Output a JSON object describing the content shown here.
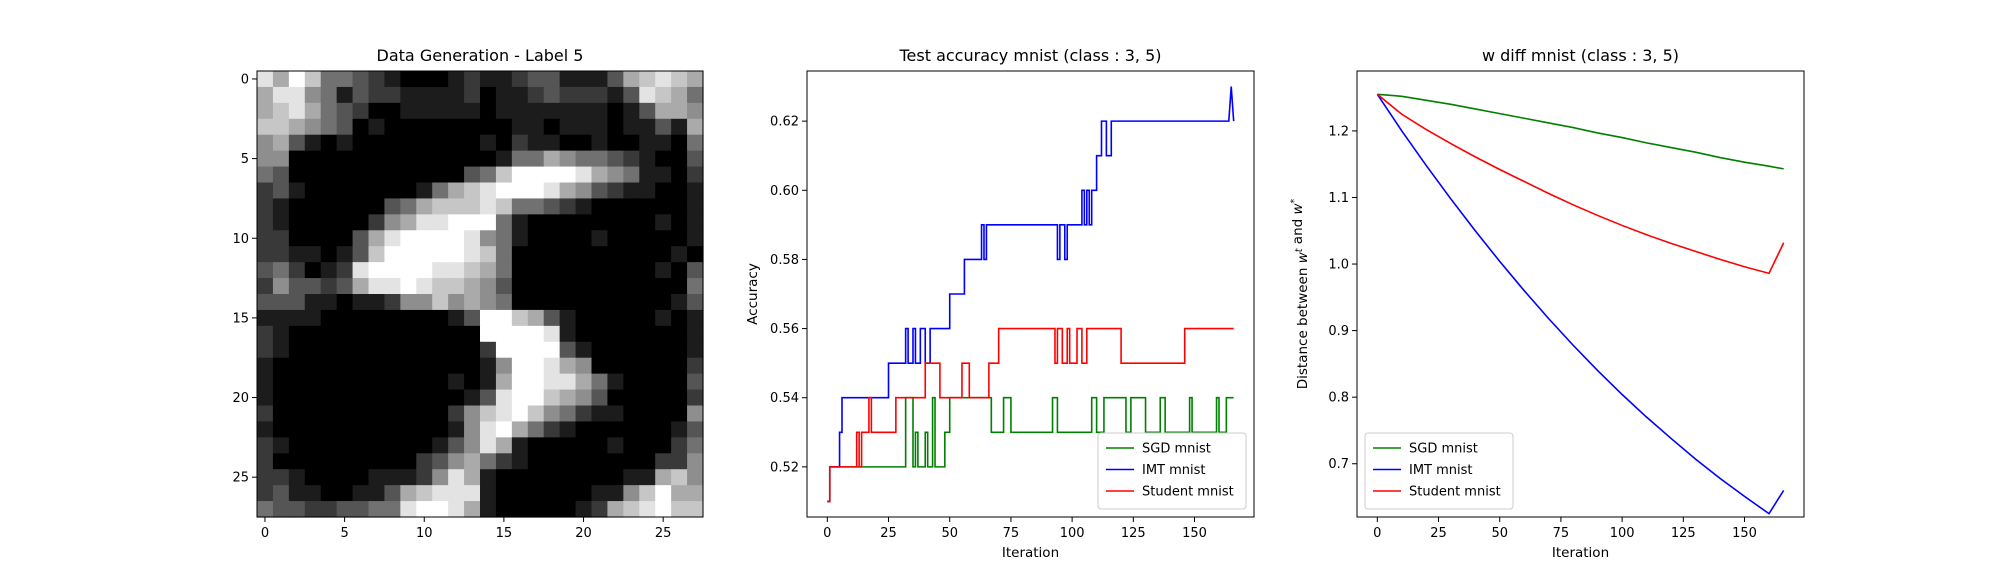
{
  "chart_data": [
    {
      "type": "heatmap",
      "title": "Data Generation - Label 5",
      "xlim": [
        -0.5,
        27.5
      ],
      "ylim": [
        27.5,
        -0.5
      ],
      "xticks": [
        0,
        5,
        10,
        15,
        20,
        25
      ],
      "yticks": [
        0,
        5,
        10,
        15,
        20,
        25
      ],
      "colormap": "gray",
      "image_rows": [
        "8697443210001211233111367876",
        "6885413221111201123222138764",
        "6786432001111101111111013665",
        "7765430100000000110111011316",
        "5631010000000010211001001104",
        "5500000000000001446544321003",
        "4300000000000347999986541102",
        "2310000000146789998653211001",
        "2100000034677787443210000001",
        "2100000256889994100000000101",
        "2200003689999854100001000001",
        "2211013799999874000000000010",
        "3420128999988764000000000103",
        "2533236889877653000000000004",
        "3331101125575654000000000013",
        "1111000000001399763100000101",
        "2100000000000099998100000001",
        "2100000000000029999310000001",
        "1000000000000015998650000002",
        "1000000000001016998864100003",
        "1000000000000138997653000002",
        "2000000000002578975421100005",
        "1000000000001589642100000013",
        "2100000000013586100000100024",
        "2000000000235642100000000225",
        "2210000111258610000000011675",
        "2311001136788810000001157966",
        "4332233448998610000012678977"
      ]
    },
    {
      "type": "line",
      "title": "Test accuracy mnist (class : 3, 5)",
      "xlabel": "Iteration",
      "ylabel": "Accuracy",
      "xlim": [
        -8.3,
        174.3
      ],
      "ylim": [
        0.5055,
        0.6345
      ],
      "xticks": [
        0,
        25,
        50,
        75,
        100,
        125,
        150
      ],
      "yticks": [
        0.52,
        0.54,
        0.56,
        0.58,
        0.6,
        0.62
      ],
      "ytick_decimals": 2,
      "grid": false,
      "legend": "lower-right",
      "series": [
        {
          "name": "SGD mnist",
          "color": "#008000",
          "points": [
            [
              0,
              0.51
            ],
            [
              1,
              0.51
            ],
            [
              1,
              0.52
            ],
            [
              32,
              0.52
            ],
            [
              32,
              0.54
            ],
            [
              35,
              0.54
            ],
            [
              35,
              0.52
            ],
            [
              36,
              0.52
            ],
            [
              36,
              0.53
            ],
            [
              37,
              0.53
            ],
            [
              37,
              0.52
            ],
            [
              40,
              0.52
            ],
            [
              40,
              0.53
            ],
            [
              41,
              0.53
            ],
            [
              41,
              0.52
            ],
            [
              43,
              0.52
            ],
            [
              43,
              0.54
            ],
            [
              44,
              0.54
            ],
            [
              44,
              0.52
            ],
            [
              48,
              0.52
            ],
            [
              48,
              0.53
            ],
            [
              50,
              0.53
            ],
            [
              50,
              0.54
            ],
            [
              67,
              0.54
            ],
            [
              67,
              0.53
            ],
            [
              72,
              0.53
            ],
            [
              72,
              0.54
            ],
            [
              75,
              0.54
            ],
            [
              75,
              0.53
            ],
            [
              92,
              0.53
            ],
            [
              92,
              0.54
            ],
            [
              94,
              0.54
            ],
            [
              94,
              0.53
            ],
            [
              108,
              0.53
            ],
            [
              108,
              0.54
            ],
            [
              110,
              0.54
            ],
            [
              110,
              0.53
            ],
            [
              113,
              0.53
            ],
            [
              113,
              0.54
            ],
            [
              122,
              0.54
            ],
            [
              122,
              0.53
            ],
            [
              124,
              0.53
            ],
            [
              124,
              0.54
            ],
            [
              130,
              0.54
            ],
            [
              130,
              0.53
            ],
            [
              136,
              0.53
            ],
            [
              136,
              0.54
            ],
            [
              138,
              0.54
            ],
            [
              138,
              0.53
            ],
            [
              148,
              0.53
            ],
            [
              148,
              0.54
            ],
            [
              149,
              0.54
            ],
            [
              149,
              0.53
            ],
            [
              159,
              0.53
            ],
            [
              159,
              0.54
            ],
            [
              160,
              0.54
            ],
            [
              160,
              0.53
            ],
            [
              163,
              0.53
            ],
            [
              163,
              0.54
            ],
            [
              166,
              0.54
            ]
          ]
        },
        {
          "name": "IMT mnist",
          "color": "#0000ff",
          "points": [
            [
              0,
              0.51
            ],
            [
              1,
              0.51
            ],
            [
              1,
              0.52
            ],
            [
              5,
              0.52
            ],
            [
              5,
              0.53
            ],
            [
              6,
              0.53
            ],
            [
              6,
              0.54
            ],
            [
              25,
              0.54
            ],
            [
              25,
              0.55
            ],
            [
              32,
              0.55
            ],
            [
              32,
              0.56
            ],
            [
              33,
              0.56
            ],
            [
              33,
              0.55
            ],
            [
              35,
              0.55
            ],
            [
              35,
              0.56
            ],
            [
              36,
              0.56
            ],
            [
              36,
              0.55
            ],
            [
              38,
              0.55
            ],
            [
              38,
              0.56
            ],
            [
              40,
              0.56
            ],
            [
              40,
              0.55
            ],
            [
              42,
              0.55
            ],
            [
              42,
              0.56
            ],
            [
              50,
              0.56
            ],
            [
              50,
              0.57
            ],
            [
              56,
              0.57
            ],
            [
              56,
              0.58
            ],
            [
              63,
              0.58
            ],
            [
              63,
              0.59
            ],
            [
              64,
              0.59
            ],
            [
              64,
              0.58
            ],
            [
              65,
              0.58
            ],
            [
              65,
              0.59
            ],
            [
              94,
              0.59
            ],
            [
              94,
              0.58
            ],
            [
              95,
              0.58
            ],
            [
              95,
              0.59
            ],
            [
              97,
              0.59
            ],
            [
              97,
              0.58
            ],
            [
              98,
              0.58
            ],
            [
              98,
              0.59
            ],
            [
              104,
              0.59
            ],
            [
              104,
              0.6
            ],
            [
              105,
              0.6
            ],
            [
              105,
              0.59
            ],
            [
              106,
              0.59
            ],
            [
              106,
              0.6
            ],
            [
              107,
              0.6
            ],
            [
              107,
              0.59
            ],
            [
              108,
              0.59
            ],
            [
              108,
              0.6
            ],
            [
              110,
              0.6
            ],
            [
              110,
              0.61
            ],
            [
              112,
              0.61
            ],
            [
              112,
              0.62
            ],
            [
              114,
              0.62
            ],
            [
              114,
              0.61
            ],
            [
              116,
              0.61
            ],
            [
              116,
              0.62
            ],
            [
              164,
              0.62
            ],
            [
              165,
              0.63
            ],
            [
              166,
              0.62
            ]
          ]
        },
        {
          "name": "Student mnist",
          "color": "#ff0000",
          "points": [
            [
              0,
              0.51
            ],
            [
              1,
              0.51
            ],
            [
              1,
              0.52
            ],
            [
              12,
              0.52
            ],
            [
              12,
              0.53
            ],
            [
              13,
              0.53
            ],
            [
              13,
              0.52
            ],
            [
              14,
              0.52
            ],
            [
              14,
              0.53
            ],
            [
              17,
              0.53
            ],
            [
              17,
              0.54
            ],
            [
              18,
              0.54
            ],
            [
              18,
              0.53
            ],
            [
              28,
              0.53
            ],
            [
              28,
              0.54
            ],
            [
              40,
              0.54
            ],
            [
              40,
              0.55
            ],
            [
              46,
              0.55
            ],
            [
              46,
              0.54
            ],
            [
              55,
              0.54
            ],
            [
              55,
              0.55
            ],
            [
              58,
              0.55
            ],
            [
              58,
              0.54
            ],
            [
              66,
              0.54
            ],
            [
              66,
              0.55
            ],
            [
              70,
              0.55
            ],
            [
              70,
              0.56
            ],
            [
              93,
              0.56
            ],
            [
              93,
              0.55
            ],
            [
              94,
              0.55
            ],
            [
              94,
              0.56
            ],
            [
              96,
              0.56
            ],
            [
              96,
              0.55
            ],
            [
              98,
              0.55
            ],
            [
              98,
              0.56
            ],
            [
              99,
              0.56
            ],
            [
              99,
              0.55
            ],
            [
              102,
              0.55
            ],
            [
              102,
              0.56
            ],
            [
              104,
              0.56
            ],
            [
              104,
              0.55
            ],
            [
              106,
              0.55
            ],
            [
              106,
              0.56
            ],
            [
              120,
              0.56
            ],
            [
              120,
              0.55
            ],
            [
              146,
              0.55
            ],
            [
              146,
              0.56
            ],
            [
              166,
              0.56
            ]
          ]
        }
      ]
    },
    {
      "type": "line",
      "title": "w diff mnist (class : 3, 5)",
      "xlabel": "Iteration",
      "ylabel": "Distance between $w^t$ and $w^*$",
      "xlim": [
        -8.3,
        174.3
      ],
      "ylim": [
        0.62,
        1.29
      ],
      "xticks": [
        0,
        25,
        50,
        75,
        100,
        125,
        150
      ],
      "yticks": [
        0.7,
        0.8,
        0.9,
        1.0,
        1.1,
        1.2
      ],
      "ytick_decimals": 1,
      "grid": false,
      "legend": "lower-left",
      "series": [
        {
          "name": "SGD mnist",
          "color": "#008000",
          "points": [
            [
              0,
              1.255
            ],
            [
              10,
              1.252
            ],
            [
              20,
              1.246
            ],
            [
              30,
              1.24
            ],
            [
              40,
              1.233
            ],
            [
              50,
              1.226
            ],
            [
              60,
              1.219
            ],
            [
              70,
              1.212
            ],
            [
              80,
              1.205
            ],
            [
              90,
              1.197
            ],
            [
              100,
              1.19
            ],
            [
              110,
              1.182
            ],
            [
              120,
              1.175
            ],
            [
              130,
              1.168
            ],
            [
              140,
              1.16
            ],
            [
              150,
              1.153
            ],
            [
              160,
              1.147
            ],
            [
              166,
              1.143
            ]
          ]
        },
        {
          "name": "IMT mnist",
          "color": "#0000ff",
          "points": [
            [
              0,
              1.255
            ],
            [
              10,
              1.2
            ],
            [
              20,
              1.148
            ],
            [
              30,
              1.098
            ],
            [
              40,
              1.05
            ],
            [
              50,
              1.004
            ],
            [
              60,
              0.96
            ],
            [
              70,
              0.918
            ],
            [
              80,
              0.878
            ],
            [
              90,
              0.84
            ],
            [
              100,
              0.804
            ],
            [
              110,
              0.77
            ],
            [
              120,
              0.738
            ],
            [
              130,
              0.707
            ],
            [
              140,
              0.678
            ],
            [
              150,
              0.651
            ],
            [
              160,
              0.625
            ],
            [
              166,
              0.66
            ]
          ]
        },
        {
          "name": "Student mnist",
          "color": "#ff0000",
          "points": [
            [
              0,
              1.255
            ],
            [
              10,
              1.225
            ],
            [
              20,
              1.202
            ],
            [
              30,
              1.181
            ],
            [
              40,
              1.161
            ],
            [
              50,
              1.142
            ],
            [
              60,
              1.124
            ],
            [
              70,
              1.106
            ],
            [
              80,
              1.089
            ],
            [
              90,
              1.073
            ],
            [
              100,
              1.058
            ],
            [
              110,
              1.044
            ],
            [
              120,
              1.031
            ],
            [
              130,
              1.019
            ],
            [
              140,
              1.007
            ],
            [
              150,
              0.996
            ],
            [
              160,
              0.986
            ],
            [
              166,
              1.032
            ]
          ]
        }
      ]
    }
  ]
}
